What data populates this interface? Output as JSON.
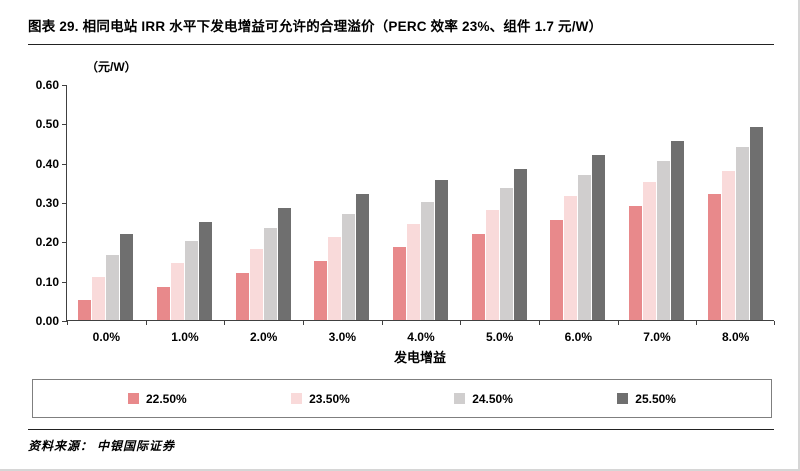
{
  "header": {
    "title": "图表 29. 相同电站 IRR 水平下发电增益可允许的合理溢价（PERC 效率 23%、组件 1.7 元/W）"
  },
  "footer": {
    "source": "资料来源： 中银国际证券"
  },
  "chart_data": {
    "type": "bar",
    "title": "相同电站 IRR 水平下发电增益可允许的合理溢价",
    "unit_label": "（元/W）",
    "xlabel": "发电增益",
    "ylabel": "",
    "ylim": [
      0,
      0.6
    ],
    "ytick_step": 0.1,
    "yticks": [
      "0.60",
      "0.50",
      "0.40",
      "0.30",
      "0.20",
      "0.10",
      "0.00"
    ],
    "categories": [
      "0.0%",
      "1.0%",
      "2.0%",
      "3.0%",
      "4.0%",
      "5.0%",
      "6.0%",
      "7.0%",
      "8.0%"
    ],
    "series": [
      {
        "name": "22.50%",
        "color": "#e8898b",
        "values": [
          0.05,
          0.085,
          0.12,
          0.15,
          0.185,
          0.22,
          0.255,
          0.29,
          0.32
        ]
      },
      {
        "name": "23.50%",
        "color": "#f9dada",
        "values": [
          0.11,
          0.145,
          0.18,
          0.21,
          0.245,
          0.28,
          0.315,
          0.35,
          0.38
        ]
      },
      {
        "name": "24.50%",
        "color": "#d0cece",
        "values": [
          0.165,
          0.2,
          0.235,
          0.27,
          0.3,
          0.335,
          0.37,
          0.405,
          0.44
        ]
      },
      {
        "name": "25.50%",
        "color": "#6f6f6f",
        "values": [
          0.22,
          0.25,
          0.285,
          0.32,
          0.355,
          0.385,
          0.42,
          0.455,
          0.49
        ]
      }
    ],
    "legend_position": "bottom",
    "grid": false
  }
}
